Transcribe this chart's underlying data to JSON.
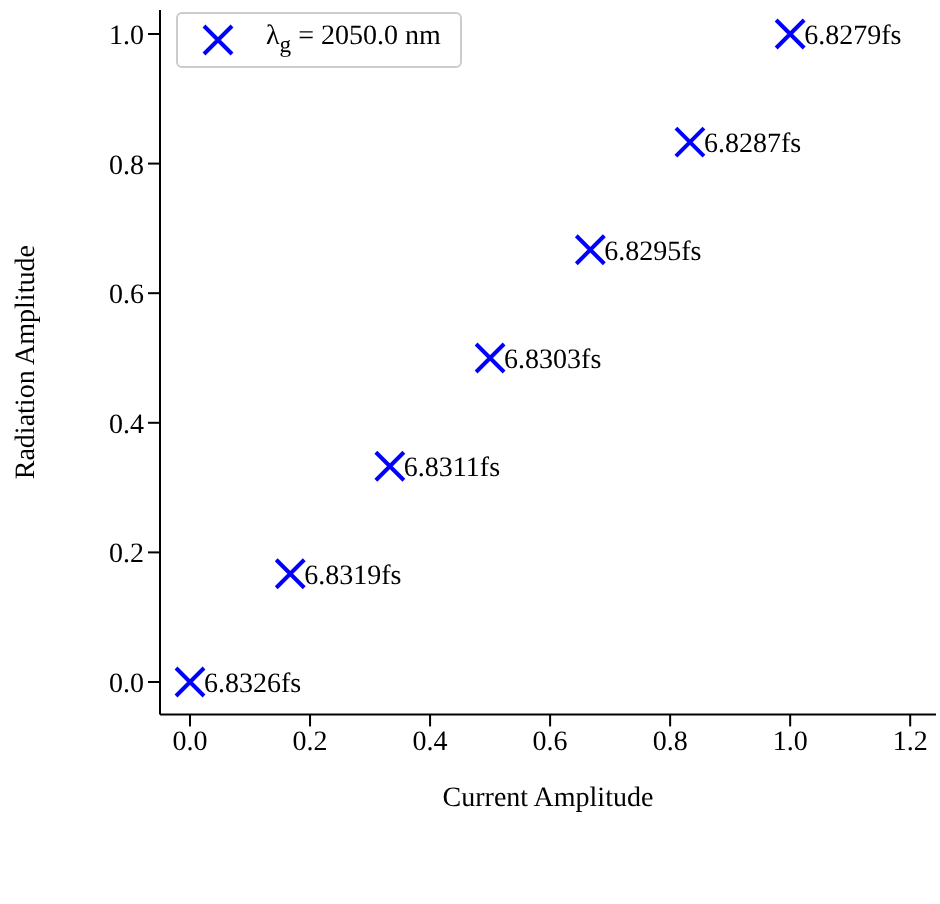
{
  "chart_data": {
    "type": "scatter",
    "xlabel": "Current Amplitude",
    "ylabel": "Radiation Amplitude",
    "x": [
      0,
      0.167,
      0.333,
      0.5,
      0.667,
      0.833,
      1
    ],
    "series": [
      {
        "name": "λ$_{g}$ = 2050.0 nm",
        "color": "#0000ff",
        "values": [
          0,
          0.167,
          0.333,
          0.5,
          0.667,
          0.833,
          1
        ]
      }
    ],
    "xlim": [
      -0.05,
      1.243
    ],
    "xticks": [
      {
        "value": 0,
        "label": "0.0"
      },
      0.2,
      0.4,
      0.6,
      0.8,
      {
        "value": 1,
        "label": "1.0"
      },
      1.2
    ],
    "ylim": [
      -0.05,
      1.037
    ],
    "yticks": [
      {
        "value": 0,
        "label": "0.0"
      },
      0.2,
      0.4,
      0.6,
      0.8,
      {
        "value": 1,
        "label": "1.0"
      }
    ],
    "marker": "cross",
    "legend": "top left",
    "grid": false,
    "annotations": [
      {
        "text": "6.8326fs",
        "x": 0,
        "y": 0
      },
      {
        "text": "6.8319fs",
        "x": 0.167,
        "y": 0.167
      },
      {
        "text": "6.8311fs",
        "x": 0.333,
        "y": 0.333
      },
      {
        "text": "6.8303fs",
        "x": 0.5,
        "y": 0.5
      },
      {
        "text": "6.8295fs",
        "x": 0.667,
        "y": 0.667
      },
      {
        "text": "6.8287fs",
        "x": 0.833,
        "y": 0.833
      },
      {
        "text": "6.8279fs",
        "x": 1,
        "y": 1
      }
    ]
  }
}
